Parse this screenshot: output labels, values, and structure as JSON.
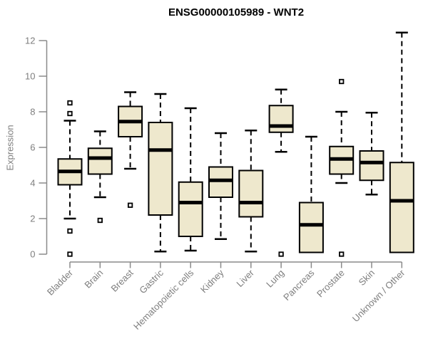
{
  "chart_data": {
    "type": "boxplot",
    "title": "ENSG00000105989 - WNT2",
    "ylabel": "Expression",
    "xlabel": "",
    "ylim": [
      0,
      12
    ],
    "yticks": [
      0,
      2,
      4,
      6,
      8,
      10,
      12
    ],
    "grid": false,
    "legend": false,
    "categories": [
      "Bladder",
      "Brain",
      "Breast",
      "Gastric",
      "Hematopoietic cells",
      "Kidney",
      "Liver",
      "Lung",
      "Pancreas",
      "Prostate",
      "Skin",
      "Unknown / Other"
    ],
    "boxes": [
      {
        "category": "Bladder",
        "whisker_low": 2.0,
        "q1": 3.9,
        "median": 4.65,
        "q3": 5.35,
        "whisker_high": 7.5,
        "outliers": [
          8.5,
          7.9,
          1.3,
          0.0
        ]
      },
      {
        "category": "Brain",
        "whisker_low": 3.2,
        "q1": 4.5,
        "median": 5.4,
        "q3": 5.95,
        "whisker_high": 6.9,
        "outliers": [
          1.9
        ]
      },
      {
        "category": "Breast",
        "whisker_low": 4.8,
        "q1": 6.6,
        "median": 7.45,
        "q3": 8.3,
        "whisker_high": 9.1,
        "outliers": [
          2.75
        ]
      },
      {
        "category": "Gastric",
        "whisker_low": 0.15,
        "q1": 2.2,
        "median": 5.85,
        "q3": 7.4,
        "whisker_high": 9.0,
        "outliers": []
      },
      {
        "category": "Hematopoietic cells",
        "whisker_low": 0.2,
        "q1": 1.0,
        "median": 2.9,
        "q3": 4.05,
        "whisker_high": 8.2,
        "outliers": []
      },
      {
        "category": "Kidney",
        "whisker_low": 0.85,
        "q1": 3.2,
        "median": 4.15,
        "q3": 4.9,
        "whisker_high": 6.8,
        "outliers": []
      },
      {
        "category": "Liver",
        "whisker_low": 0.15,
        "q1": 2.1,
        "median": 2.9,
        "q3": 4.7,
        "whisker_high": 6.95,
        "outliers": []
      },
      {
        "category": "Lung",
        "whisker_low": 5.75,
        "q1": 6.85,
        "median": 7.2,
        "q3": 8.35,
        "whisker_high": 9.25,
        "outliers": [
          0.0
        ]
      },
      {
        "category": "Pancreas",
        "whisker_low": 0.1,
        "q1": 0.1,
        "median": 1.65,
        "q3": 2.9,
        "whisker_high": 6.6,
        "outliers": []
      },
      {
        "category": "Prostate",
        "whisker_low": 4.0,
        "q1": 4.5,
        "median": 5.35,
        "q3": 6.05,
        "whisker_high": 8.0,
        "outliers": [
          9.7,
          0.0
        ]
      },
      {
        "category": "Skin",
        "whisker_low": 3.35,
        "q1": 4.15,
        "median": 5.15,
        "q3": 5.8,
        "whisker_high": 7.95,
        "outliers": []
      },
      {
        "category": "Unknown / Other",
        "whisker_low": 0.1,
        "q1": 0.1,
        "median": 3.0,
        "q3": 5.15,
        "whisker_high": 12.45,
        "outliers": []
      }
    ],
    "colors": {
      "box_fill": "#EEE8CD",
      "box_border": "#000000",
      "median": "#000000",
      "whisker": "#000000",
      "axis": "#8A8A8A",
      "labels": "#7E7E7E",
      "title": "#000000",
      "background": "#FFFFFF"
    }
  }
}
